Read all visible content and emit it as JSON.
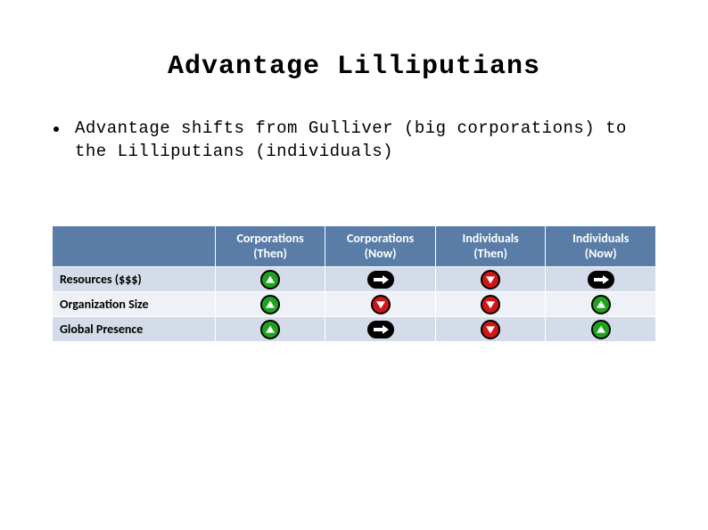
{
  "title": "Advantage Lilliputians",
  "bullet": "Advantage shifts from Gulliver (big corporations) to the Lilliputians (individuals)",
  "table": {
    "columns": [
      {
        "line1": "Corporations",
        "line2": "(Then)"
      },
      {
        "line1": "Corporations",
        "line2": "(Now)"
      },
      {
        "line1": "Individuals",
        "line2": "(Then)"
      },
      {
        "line1": "Individuals",
        "line2": "(Now)"
      }
    ],
    "rows": [
      {
        "label": "Resources ($$$)",
        "cells": [
          "up",
          "right",
          "down",
          "right"
        ]
      },
      {
        "label": "Organization Size",
        "cells": [
          "up",
          "down",
          "down",
          "up"
        ]
      },
      {
        "label": "Global Presence",
        "cells": [
          "up",
          "right",
          "down",
          "up"
        ]
      }
    ],
    "colors": {
      "header_bg": "#5a7da8",
      "header_fg": "#ffffff",
      "row_bg_a": "#d3dce8",
      "row_bg_b": "#eef2f7",
      "icon_up": "#1fa31f",
      "icon_down": "#d01717",
      "icon_right": "#000000",
      "icon_border": "#000000"
    }
  }
}
